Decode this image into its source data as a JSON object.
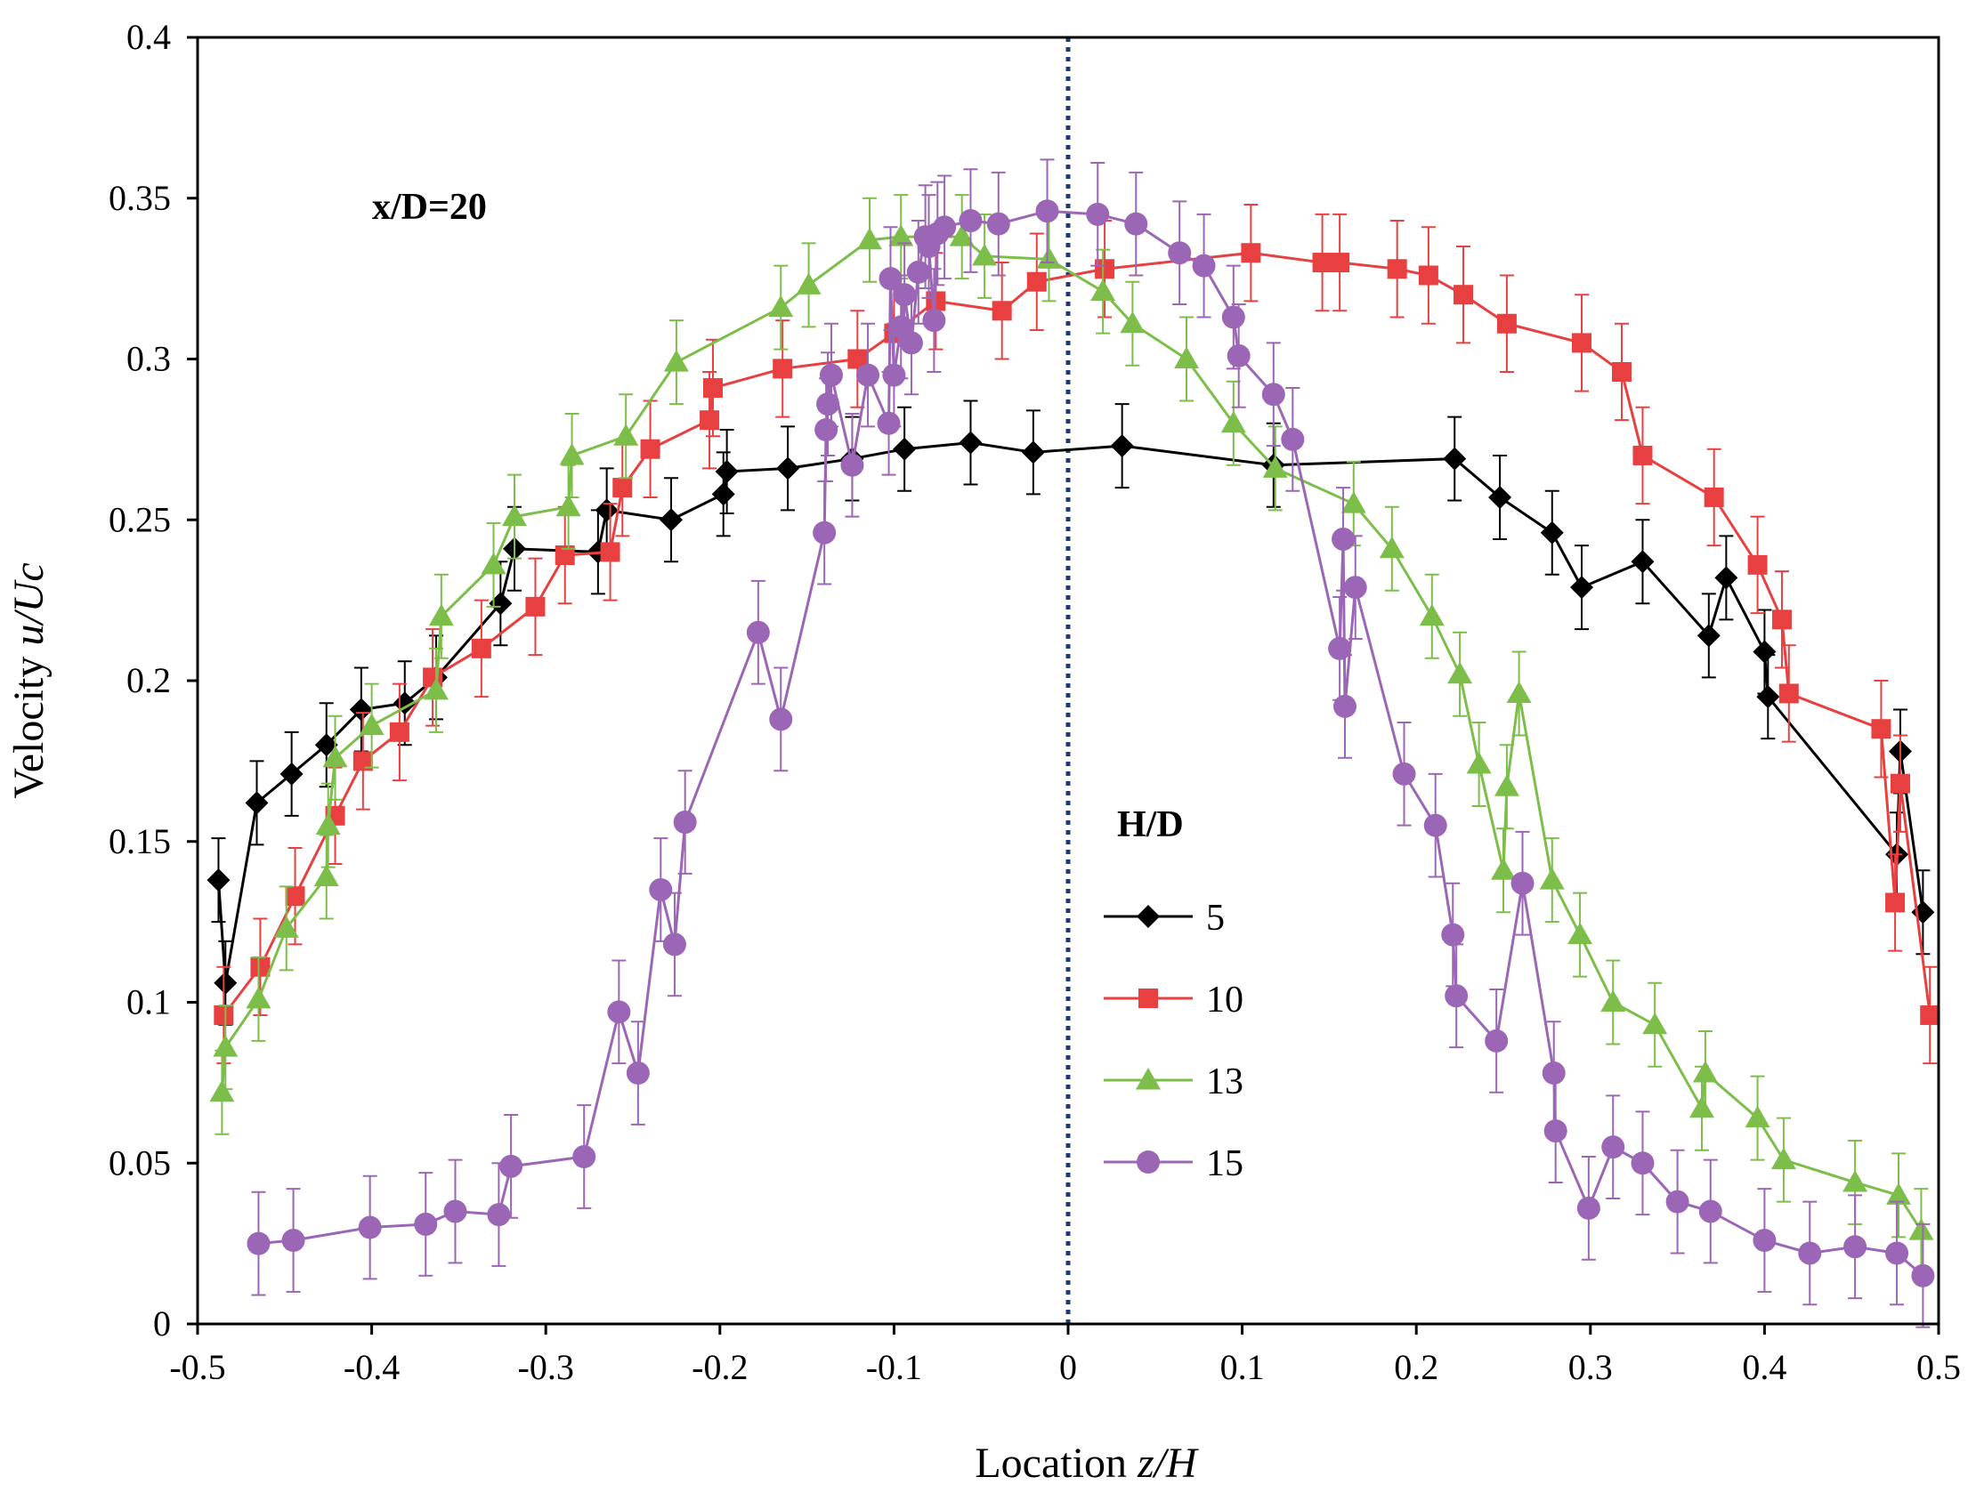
{
  "chart_data": {
    "type": "line",
    "title": "",
    "annotation": "x/D=20",
    "xlabel": {
      "prefix": "Location ",
      "var": "z/H"
    },
    "ylabel": {
      "prefix": "Velocity ",
      "var": "u/Uc"
    },
    "xlim": [
      -0.5,
      0.5
    ],
    "ylim": [
      0,
      0.4
    ],
    "xticks": [
      -0.5,
      -0.4,
      -0.3,
      -0.2,
      -0.1,
      0,
      0.1,
      0.2,
      0.3,
      0.4,
      0.5
    ],
    "xtick_labels": [
      "-0.5",
      "-0.4",
      "-0.3",
      "-0.2",
      "-0.1",
      "0",
      "0.1",
      "0.2",
      "0.3",
      "0.4",
      "0.5"
    ],
    "yticks": [
      0,
      0.05,
      0.1,
      0.15,
      0.2,
      0.25,
      0.3,
      0.35,
      0.4
    ],
    "ytick_labels": [
      "0",
      "0.05",
      "0.1",
      "0.15",
      "0.2",
      "0.25",
      "0.3",
      "0.35",
      "0.4"
    ],
    "grid": false,
    "centerline": {
      "x": 0,
      "color": "#1F3A7A"
    },
    "legend": {
      "title": "H/D",
      "placement": "center-right"
    },
    "series": [
      {
        "name": "5",
        "color": "#000000",
        "marker": "diamond",
        "x": [
          -0.488,
          -0.484,
          -0.466,
          -0.446,
          -0.426,
          -0.406,
          -0.381,
          -0.363,
          -0.326,
          -0.318,
          -0.27,
          -0.265,
          -0.228,
          -0.198,
          -0.196,
          -0.161,
          -0.124,
          -0.094,
          -0.056,
          -0.02,
          0.031,
          0.118,
          0.222,
          0.248,
          0.278,
          0.295,
          0.33,
          0.368,
          0.378,
          0.4,
          0.402,
          0.476,
          0.478,
          0.491
        ],
        "y": [
          0.138,
          0.106,
          0.162,
          0.171,
          0.18,
          0.191,
          0.193,
          0.201,
          0.224,
          0.241,
          0.24,
          0.253,
          0.25,
          0.258,
          0.265,
          0.266,
          0.269,
          0.272,
          0.274,
          0.271,
          0.273,
          0.267,
          0.269,
          0.257,
          0.246,
          0.229,
          0.237,
          0.214,
          0.232,
          0.209,
          0.195,
          0.146,
          0.178,
          0.128
        ],
        "err": 0.013
      },
      {
        "name": "10",
        "color": "#E84040",
        "marker": "square",
        "x": [
          -0.485,
          -0.464,
          -0.444,
          -0.421,
          -0.405,
          -0.384,
          -0.365,
          -0.337,
          -0.306,
          -0.289,
          -0.263,
          -0.256,
          -0.24,
          -0.206,
          -0.204,
          -0.164,
          -0.121,
          -0.1,
          -0.076,
          -0.038,
          -0.018,
          0.021,
          0.105,
          0.146,
          0.156,
          0.189,
          0.207,
          0.227,
          0.252,
          0.295,
          0.318,
          0.33,
          0.371,
          0.396,
          0.41,
          0.414,
          0.467,
          0.475,
          0.478,
          0.495
        ],
        "y": [
          0.096,
          0.111,
          0.133,
          0.158,
          0.175,
          0.184,
          0.201,
          0.21,
          0.223,
          0.239,
          0.24,
          0.26,
          0.272,
          0.281,
          0.291,
          0.297,
          0.3,
          0.308,
          0.318,
          0.315,
          0.324,
          0.328,
          0.333,
          0.33,
          0.33,
          0.328,
          0.326,
          0.32,
          0.311,
          0.305,
          0.296,
          0.27,
          0.257,
          0.236,
          0.219,
          0.196,
          0.185,
          0.131,
          0.168,
          0.096
        ],
        "err": 0.015
      },
      {
        "name": "13",
        "color": "#7DBE4A",
        "marker": "triangle",
        "x": [
          -0.486,
          -0.484,
          -0.465,
          -0.449,
          -0.426,
          -0.425,
          -0.421,
          -0.4,
          -0.363,
          -0.36,
          -0.33,
          -0.318,
          -0.287,
          -0.285,
          -0.254,
          -0.225,
          -0.165,
          -0.149,
          -0.114,
          -0.096,
          -0.061,
          -0.048,
          -0.011,
          0.02,
          0.037,
          0.068,
          0.095,
          0.119,
          0.164,
          0.186,
          0.209,
          0.225,
          0.236,
          0.25,
          0.252,
          0.259,
          0.278,
          0.294,
          0.313,
          0.337,
          0.364,
          0.366,
          0.396,
          0.411,
          0.452,
          0.477,
          0.49
        ],
        "y": [
          0.072,
          0.086,
          0.101,
          0.123,
          0.139,
          0.155,
          0.176,
          0.186,
          0.197,
          0.22,
          0.236,
          0.251,
          0.254,
          0.27,
          0.276,
          0.299,
          0.316,
          0.323,
          0.337,
          0.338,
          0.338,
          0.332,
          0.331,
          0.321,
          0.311,
          0.3,
          0.28,
          0.266,
          0.255,
          0.241,
          0.22,
          0.202,
          0.174,
          0.141,
          0.167,
          0.196,
          0.138,
          0.121,
          0.1,
          0.093,
          0.067,
          0.078,
          0.064,
          0.051,
          0.044,
          0.04,
          0.029
        ],
        "err": 0.013
      },
      {
        "name": "15",
        "color": "#9B66B5",
        "marker": "circle",
        "x": [
          -0.465,
          -0.445,
          -0.401,
          -0.369,
          -0.352,
          -0.327,
          -0.32,
          -0.278,
          -0.258,
          -0.247,
          -0.234,
          -0.226,
          -0.22,
          -0.178,
          -0.165,
          -0.14,
          -0.139,
          -0.138,
          -0.136,
          -0.124,
          -0.115,
          -0.103,
          -0.102,
          -0.1,
          -0.096,
          -0.094,
          -0.09,
          -0.086,
          -0.082,
          -0.08,
          -0.077,
          -0.075,
          -0.071,
          -0.056,
          -0.04,
          -0.012,
          0.017,
          0.039,
          0.064,
          0.078,
          0.095,
          0.098,
          0.118,
          0.129,
          0.156,
          0.158,
          0.159,
          0.165,
          0.193,
          0.211,
          0.221,
          0.223,
          0.246,
          0.261,
          0.279,
          0.28,
          0.299,
          0.313,
          0.33,
          0.35,
          0.369,
          0.4,
          0.426,
          0.452,
          0.476,
          0.491
        ],
        "y": [
          0.025,
          0.026,
          0.03,
          0.031,
          0.035,
          0.034,
          0.049,
          0.052,
          0.097,
          0.078,
          0.135,
          0.118,
          0.156,
          0.215,
          0.188,
          0.246,
          0.278,
          0.286,
          0.295,
          0.267,
          0.295,
          0.28,
          0.325,
          0.295,
          0.31,
          0.32,
          0.305,
          0.327,
          0.338,
          0.335,
          0.312,
          0.339,
          0.341,
          0.343,
          0.342,
          0.346,
          0.345,
          0.342,
          0.333,
          0.329,
          0.313,
          0.301,
          0.289,
          0.275,
          0.21,
          0.244,
          0.192,
          0.229,
          0.171,
          0.155,
          0.121,
          0.102,
          0.088,
          0.137,
          0.078,
          0.06,
          0.036,
          0.055,
          0.05,
          0.038,
          0.035,
          0.026,
          0.022,
          0.024,
          0.022,
          0.015
        ],
        "err": 0.016
      }
    ]
  }
}
